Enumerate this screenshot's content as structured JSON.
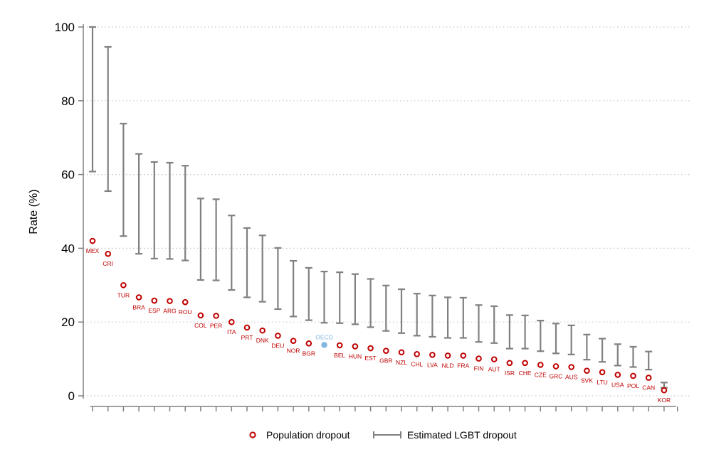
{
  "chart_data": {
    "type": "scatter",
    "ylabel": "Rate (%)",
    "xlabel": "",
    "title": "",
    "ylim": [
      0,
      100
    ],
    "yticks": [
      0,
      20,
      40,
      60,
      80,
      100
    ],
    "grid": "horizontal dotted",
    "legend_position": "bottom",
    "categories": [
      "MEX",
      "CRI",
      "TUR",
      "BRA",
      "ESP",
      "ARG",
      "ROU",
      "COL",
      "PER",
      "ITA",
      "PRT",
      "DNK",
      "DEU",
      "NOR",
      "BGR",
      "OECD",
      "BEL",
      "HUN",
      "EST",
      "GBR",
      "NZL",
      "CHL",
      "LVA",
      "NLD",
      "FRA",
      "FIN",
      "AUT",
      "ISR",
      "CHE",
      "CZE",
      "GRC",
      "AUS",
      "SVK",
      "LTU",
      "USA",
      "POL",
      "CAN",
      "KOR"
    ],
    "highlight_category": "OECD",
    "series": [
      {
        "name": "Population dropout",
        "marker": "hollow-circle",
        "color": "#c00000",
        "values": [
          42,
          38.5,
          30,
          26.7,
          25.8,
          25.7,
          25.4,
          21.8,
          21.7,
          20,
          18.5,
          17.7,
          16.3,
          14.9,
          14.2,
          13.8,
          13.7,
          13.4,
          12.9,
          12.2,
          11.8,
          11.3,
          11.1,
          10.9,
          10.9,
          10.1,
          9.9,
          8.9,
          8.9,
          8.4,
          8.0,
          7.8,
          6.8,
          6.4,
          5.7,
          5.4,
          4.9,
          1.5
        ]
      },
      {
        "name": "Estimated LGBT dropout",
        "marker": "capped-range",
        "color": "#808080",
        "low": [
          60.8,
          55.5,
          43.3,
          38.5,
          37.2,
          37.1,
          36.7,
          31.4,
          31.3,
          28.7,
          26.7,
          25.5,
          23.5,
          21.5,
          20.5,
          19.8,
          19.7,
          19.4,
          18.6,
          17.6,
          17.0,
          16.3,
          16.0,
          15.7,
          15.7,
          14.6,
          14.3,
          12.8,
          12.8,
          12.1,
          11.5,
          11.2,
          9.8,
          9.2,
          8.2,
          7.8,
          7.1,
          2.2
        ],
        "high": [
          100,
          94.6,
          73.8,
          65.6,
          63.4,
          63.2,
          62.4,
          53.5,
          53.3,
          48.9,
          45.5,
          43.5,
          40.1,
          36.6,
          34.7,
          33.7,
          33.5,
          33.0,
          31.7,
          29.9,
          28.9,
          27.7,
          27.2,
          26.7,
          26.6,
          24.6,
          24.3,
          21.9,
          21.8,
          20.4,
          19.6,
          19.1,
          16.6,
          15.5,
          14.0,
          13.3,
          12.0,
          3.6
        ]
      }
    ],
    "colors": {
      "dropout": "#c00000",
      "range": "#808080",
      "oecd": "#7fb7e0",
      "grid": "#c8c8c8",
      "axis": "#808080"
    }
  },
  "legend": {
    "population_label": "Population dropout",
    "lgbt_label": "Estimated LGBT dropout"
  }
}
